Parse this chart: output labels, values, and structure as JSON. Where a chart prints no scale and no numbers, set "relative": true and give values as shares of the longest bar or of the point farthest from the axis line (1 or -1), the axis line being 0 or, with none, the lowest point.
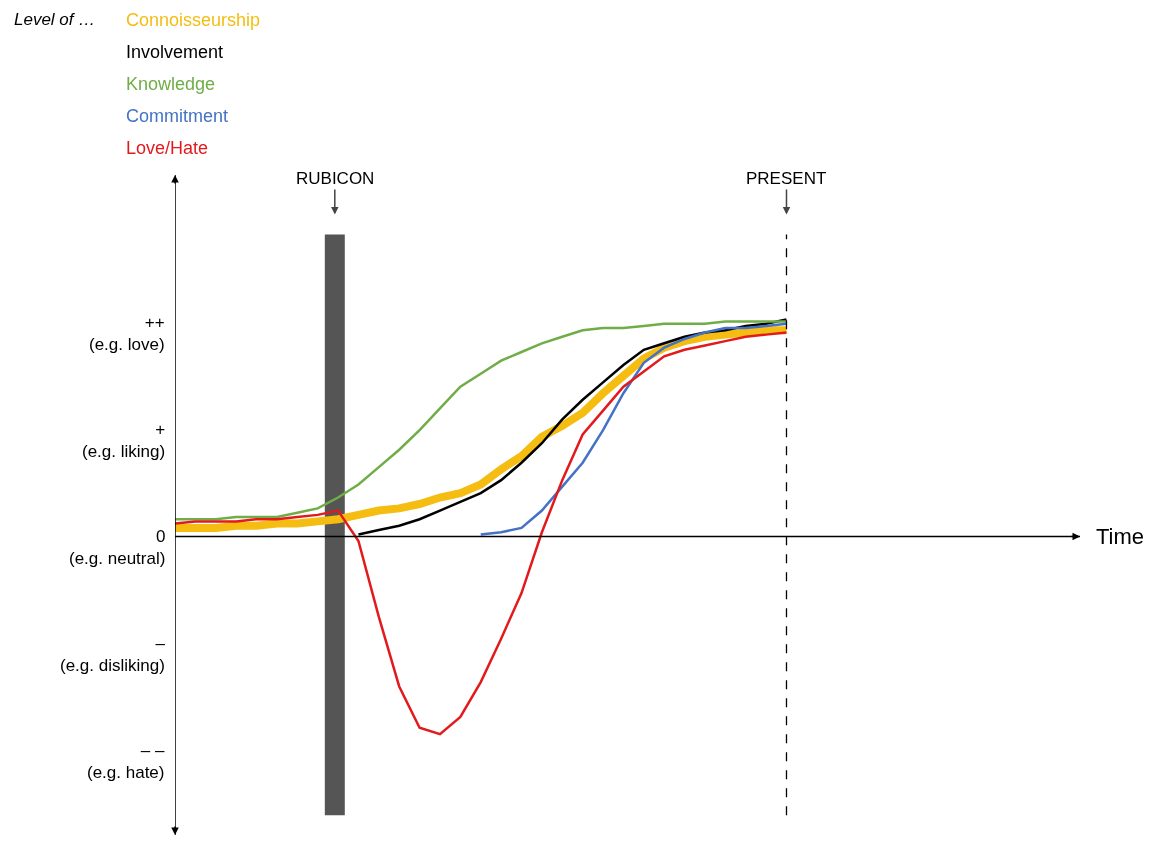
{
  "chart_data": {
    "type": "line",
    "relative": true,
    "legend_title": "Level of …",
    "grid": false,
    "marker": "none",
    "line_style": "solid",
    "categories": [
      null,
      null,
      null,
      null,
      null,
      null,
      null,
      null,
      null,
      null,
      null,
      null,
      null,
      null,
      null,
      null,
      null,
      null,
      null,
      null,
      null,
      null,
      null,
      null,
      null,
      null,
      null,
      null,
      null,
      null,
      null
    ],
    "series": [
      {
        "name": "Connoisseurship",
        "color": "#f5bd12",
        "values": [
          0.04,
          0.04,
          0.04,
          0.05,
          0.05,
          0.06,
          0.06,
          0.07,
          0.08,
          0.1,
          0.12,
          0.13,
          0.15,
          0.18,
          0.2,
          0.24,
          0.31,
          0.37,
          0.46,
          0.51,
          0.57,
          0.66,
          0.74,
          0.82,
          0.87,
          0.9,
          0.92,
          0.93,
          0.94,
          0.95,
          0.95
        ]
      },
      {
        "name": "Involvement",
        "color": "#000000",
        "values": [
          null,
          null,
          null,
          null,
          null,
          null,
          null,
          null,
          null,
          0.01,
          0.03,
          0.05,
          0.08,
          0.12,
          0.16,
          0.2,
          0.26,
          0.34,
          0.43,
          0.54,
          0.63,
          0.71,
          0.79,
          0.86,
          0.89,
          0.92,
          0.94,
          0.95,
          0.97,
          0.98,
          1
        ]
      },
      {
        "name": "Knowledge",
        "color": "#70ad47",
        "values": [
          0.08,
          0.08,
          0.08,
          0.09,
          0.09,
          0.09,
          0.11,
          0.13,
          0.18,
          0.24,
          0.32,
          0.4,
          0.49,
          0.59,
          0.69,
          0.75,
          0.81,
          0.85,
          0.89,
          0.92,
          0.95,
          0.96,
          0.96,
          0.97,
          0.98,
          0.98,
          0.98,
          0.99,
          0.99,
          0.99,
          0.99
        ]
      },
      {
        "name": "Commitment",
        "color": "#4472c4",
        "values": [
          null,
          null,
          null,
          null,
          null,
          null,
          null,
          null,
          null,
          null,
          null,
          null,
          null,
          null,
          null,
          0.01,
          0.02,
          0.04,
          0.12,
          0.23,
          0.34,
          0.49,
          0.66,
          0.8,
          0.87,
          0.91,
          0.94,
          0.96,
          0.96,
          0.97,
          0.98
        ]
      },
      {
        "name": "Love/Hate",
        "color": "#e31a1c",
        "values": [
          0.06,
          0.07,
          0.07,
          0.07,
          0.08,
          0.08,
          0.09,
          0.1,
          0.12,
          -0.02,
          -0.37,
          -0.69,
          -0.88,
          -0.91,
          -0.83,
          -0.67,
          -0.47,
          -0.26,
          0.02,
          0.26,
          0.47,
          0.58,
          0.69,
          0.76,
          0.83,
          0.86,
          0.88,
          0.9,
          0.92,
          0.93,
          0.94
        ]
      }
    ],
    "annotations": [
      "RUBICON",
      "PRESENT",
      "Time",
      "++\n(e.g. love)",
      "+\n(e.g. liking)",
      "0\n(e.g. neutral)",
      "–\n(e.g. disliking)",
      "– –\n(e.g. hate)"
    ]
  }
}
